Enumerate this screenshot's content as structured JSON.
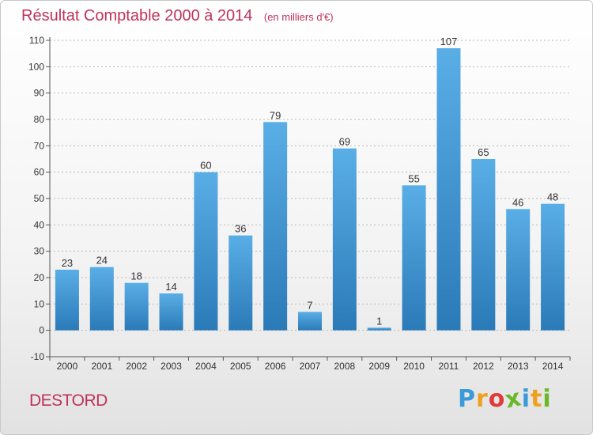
{
  "chart_data": {
    "type": "bar",
    "title": "Résultat Comptable 2000 à 2014",
    "unit_label": "(en milliers d'€)",
    "categories": [
      "2000",
      "2001",
      "2002",
      "2003",
      "2004",
      "2005",
      "2006",
      "2007",
      "2008",
      "2009",
      "2010",
      "2011",
      "2012",
      "2013",
      "2014"
    ],
    "values": [
      23,
      24,
      18,
      14,
      60,
      36,
      79,
      7,
      69,
      1,
      55,
      107,
      65,
      46,
      48
    ],
    "ylim": [
      -10,
      110
    ],
    "yticks": [
      -10,
      0,
      10,
      20,
      30,
      40,
      50,
      60,
      70,
      80,
      90,
      100,
      110
    ],
    "grid": true,
    "legend": "none",
    "bar_color_top": "#5aaee6",
    "bar_color_bottom": "#2a7ab8",
    "label_color": "#333333"
  },
  "footer": {
    "commune": "DESTORD",
    "brand_letters": [
      {
        "ch": "P",
        "color": "#3a9ad9"
      },
      {
        "ch": "r",
        "color": "#f0a020"
      },
      {
        "ch": "o",
        "color": "#e03a3a"
      },
      {
        "ch": "x",
        "color": "#6ab82a"
      },
      {
        "ch": "i",
        "color": "#3a9ad9"
      },
      {
        "ch": "t",
        "color": "#f0a020"
      },
      {
        "ch": "i",
        "color": "#6ab82a"
      }
    ]
  }
}
